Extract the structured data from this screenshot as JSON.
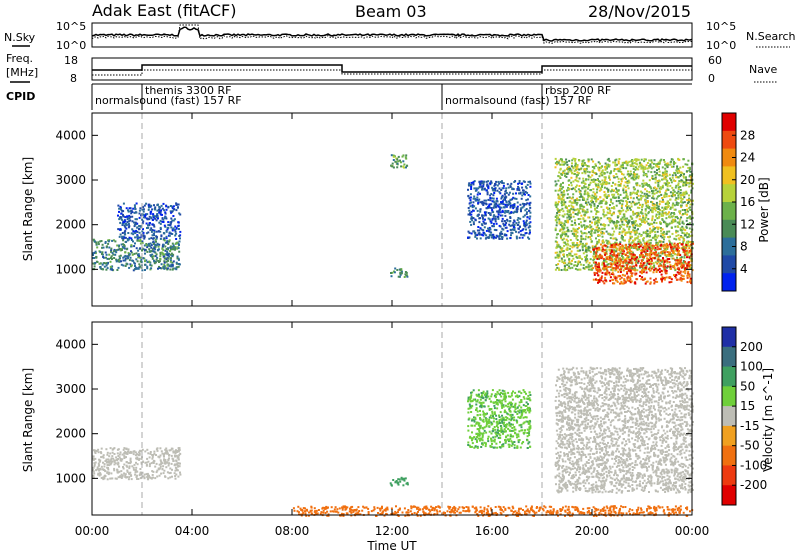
{
  "header": {
    "title": "Adak East (fitACF)",
    "beam": "Beam 03",
    "date": "28/Nov/2015"
  },
  "noise_panel": {
    "left_label": "N.Sky",
    "right_label": "N.Search",
    "y_ticks": [
      "10^5",
      "10^0"
    ]
  },
  "freq_panel": {
    "left_label_line1": "Freq.",
    "left_label_line2": "[MHz]",
    "left_ticks": [
      "18",
      "8"
    ],
    "right_label": "Nave",
    "right_ticks": [
      "60",
      "0"
    ]
  },
  "cpid": {
    "label": "CPID",
    "segments": [
      {
        "text": "normalsound (fast) 157 RF",
        "row": 2,
        "start_hour": 0.0
      },
      {
        "text": "themis 3300 RF",
        "row": 1,
        "start_hour": 2.0
      },
      {
        "text": "normalsound (fast) 157 RF",
        "row": 2,
        "start_hour": 14.0
      },
      {
        "text": "rbsp 200 RF",
        "row": 1,
        "start_hour": 18.0
      }
    ],
    "boundaries_hours": [
      2.0,
      14.0,
      18.0
    ]
  },
  "power_panel": {
    "ylabel": "Slant Range [km]",
    "y_ticks": [
      "1000",
      "2000",
      "3000",
      "4000"
    ],
    "colorbar_label": "Power [dB]",
    "colorbar_ticks": [
      "28",
      "24",
      "20",
      "16",
      "12",
      "8",
      "4"
    ],
    "colors": [
      "#0022ee",
      "#1f49a6",
      "#2c6e9a",
      "#4a8b56",
      "#6cb14a",
      "#b7d23a",
      "#f0c020",
      "#f08a10",
      "#ee4a10",
      "#e00000"
    ]
  },
  "velocity_panel": {
    "ylabel": "Slant Range [km]",
    "y_ticks": [
      "1000",
      "2000",
      "3000",
      "4000"
    ],
    "colorbar_label": "Velocity [m s^-1]",
    "colorbar_ticks": [
      "200",
      "100",
      "50",
      "15",
      "-15",
      "-50",
      "-100",
      "-200"
    ],
    "colors": [
      "#1f2fa6",
      "#3a6e7e",
      "#3fa060",
      "#6fcf3a",
      "#bdbdb5",
      "#f0a020",
      "#f07010",
      "#ee3a10",
      "#e00000"
    ]
  },
  "x_axis": {
    "label": "Time UT",
    "ticks": [
      "00:00",
      "04:00",
      "08:00",
      "12:00",
      "16:00",
      "20:00",
      "00:00"
    ]
  },
  "chart_data": {
    "type": "heatmap",
    "title": "Adak East (fitACF)",
    "xlabel": "Time UT",
    "ylabel": "Slant Range [km]",
    "xlim_hours": [
      0,
      24
    ],
    "ylim_km": [
      180,
      4500
    ],
    "power_scatter_regions": [
      {
        "t_start": 0.0,
        "t_end": 3.5,
        "range_min_km": 1000,
        "range_max_km": 1700,
        "power_db_typical": 11
      },
      {
        "t_start": 1.0,
        "t_end": 3.5,
        "range_min_km": 1700,
        "range_max_km": 2500,
        "power_db_typical": 7
      },
      {
        "t_start": 11.9,
        "t_end": 12.6,
        "range_min_km": 850,
        "range_max_km": 1050,
        "power_db_typical": 12
      },
      {
        "t_start": 11.9,
        "t_end": 12.6,
        "range_min_km": 3300,
        "range_max_km": 3600,
        "power_db_typical": 14
      },
      {
        "t_start": 15.0,
        "t_end": 17.5,
        "range_min_km": 1700,
        "range_max_km": 3000,
        "power_db_typical": 7
      },
      {
        "t_start": 18.5,
        "t_end": 24.0,
        "range_min_km": 1000,
        "range_max_km": 3500,
        "power_db_typical": 17
      },
      {
        "t_start": 20.0,
        "t_end": 24.0,
        "range_min_km": 700,
        "range_max_km": 1600,
        "power_db_typical": 27
      }
    ],
    "velocity_scatter_regions": [
      {
        "t_start": 0.0,
        "t_end": 3.5,
        "range_min_km": 1000,
        "range_max_km": 1700,
        "velocity_ms_typical": 0
      },
      {
        "t_start": 11.9,
        "t_end": 12.6,
        "range_min_km": 850,
        "range_max_km": 1050,
        "velocity_ms_typical": 40
      },
      {
        "t_start": 15.0,
        "t_end": 17.5,
        "range_min_km": 1700,
        "range_max_km": 3000,
        "velocity_ms_typical": 30
      },
      {
        "t_start": 18.5,
        "t_end": 24.0,
        "range_min_km": 700,
        "range_max_km": 3500,
        "velocity_ms_typical": 0
      },
      {
        "t_start": 8.0,
        "t_end": 24.0,
        "range_min_km": 180,
        "range_max_km": 400,
        "velocity_ms_typical": -40
      }
    ]
  }
}
